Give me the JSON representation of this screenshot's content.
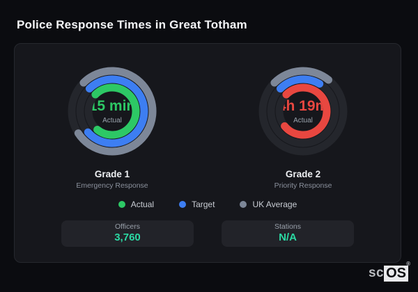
{
  "title": "Police Response Times in Great Totham",
  "colors": {
    "accent_green": "#2dc865",
    "accent_blue": "#3d7ef2",
    "accent_gray": "#7d8798",
    "accent_red": "#e84740",
    "track": "#24262c",
    "stat_value": "#2bd9a3"
  },
  "chart_data": {
    "type": "gauge",
    "title": "Police Response Times in Great Totham",
    "start_angle_deg": -45,
    "max_sweep_deg": 270,
    "legend_position": "bottom",
    "gauges": [
      {
        "id": "grade-1",
        "title": "Grade 1",
        "subtitle": "Emergency Response",
        "center_value": "15 min",
        "center_label": "Actual",
        "value_color": "#2dc865",
        "rings": [
          {
            "name": "UK Average",
            "color": "#7d8798",
            "sweep_deg": 282,
            "radius": 58
          },
          {
            "name": "Target",
            "color": "#3d7ef2",
            "sweep_deg": 274,
            "radius": 46
          },
          {
            "name": "Actual",
            "color": "#2dc865",
            "sweep_deg": 264,
            "radius": 34
          }
        ]
      },
      {
        "id": "grade-2",
        "title": "Grade 2",
        "subtitle": "Priority Response",
        "center_value": "4h 19m",
        "center_label": "Actual",
        "value_color": "#e84740",
        "rings": [
          {
            "name": "UK Average",
            "color": "#7d8798",
            "sweep_deg": 84,
            "radius": 58
          },
          {
            "name": "Target",
            "color": "#3d7ef2",
            "sweep_deg": 76,
            "radius": 46
          },
          {
            "name": "Actual",
            "color": "#e84740",
            "sweep_deg": 276,
            "radius": 34
          }
        ]
      }
    ]
  },
  "legend": {
    "items": [
      {
        "label": "Actual",
        "color": "#2dc865"
      },
      {
        "label": "Target",
        "color": "#3d7ef2"
      },
      {
        "label": "UK Average",
        "color": "#7d8798"
      }
    ]
  },
  "stats": [
    {
      "label": "Officers",
      "value": "3,760"
    },
    {
      "label": "Stations",
      "value": "N/A"
    }
  ],
  "logo": {
    "prefix": "sc",
    "suffix": "OS",
    "registered": "®"
  }
}
